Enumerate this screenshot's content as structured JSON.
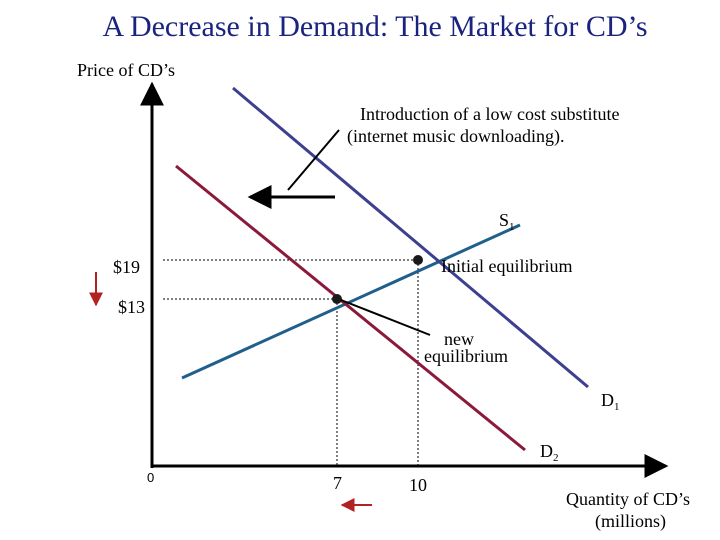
{
  "title": "A Decrease in Demand: The Market for CD’s",
  "y_axis_label": "Price of CD’s",
  "x_axis_label_line1": "Quantity of CD’s",
  "x_axis_label_line2": "(millions)",
  "annotation_line1": "Introduction of a low cost substitute",
  "annotation_line2": "(internet music downloading).",
  "initial_label": "Initial equilibrium",
  "new_label_line1": "new",
  "new_label_line2": "equilibrium",
  "supply_label": "S",
  "supply_sub": "1",
  "demand1_label": "D",
  "demand1_sub": "1",
  "demand2_label": "D",
  "demand2_sub": "2",
  "price_ticks": [
    "$19",
    "$13"
  ],
  "quantity_ticks": [
    "0",
    "7",
    "10"
  ],
  "colors": {
    "title": "#1a237e",
    "supply": "#1f5f8b",
    "demand1": "#3d3f8f",
    "demand2": "#8b1a3a",
    "arrow_red": "#b22222"
  }
}
